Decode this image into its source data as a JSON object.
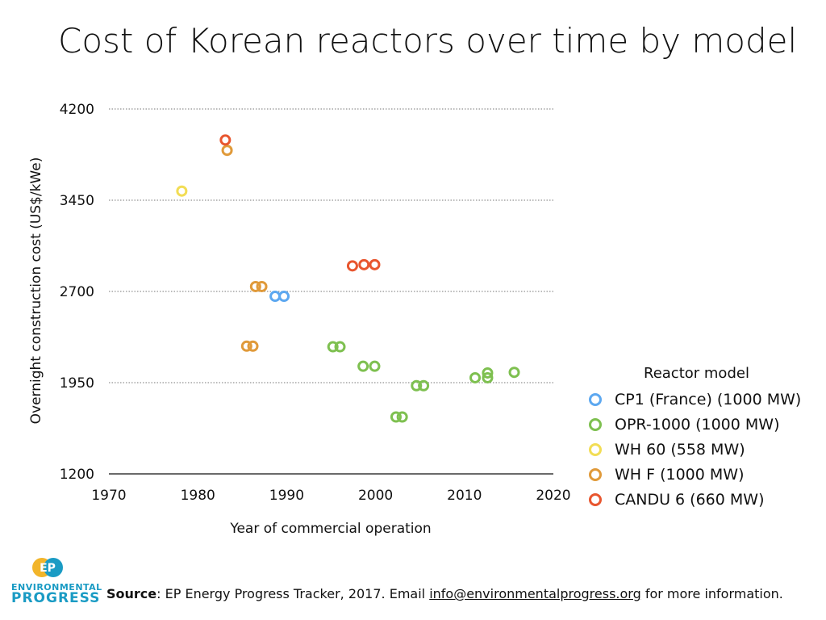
{
  "title": "Cost of Korean reactors over time by model",
  "chart_data": {
    "type": "scatter",
    "xlabel": "Year of commercial operation",
    "ylabel": "Overnight construction cost (US$/kWe)",
    "xlim": [
      1970,
      2020
    ],
    "ylim": [
      1200,
      4200
    ],
    "xticks": [
      1970,
      1980,
      1990,
      2000,
      2010,
      2020
    ],
    "yticks": [
      1200,
      1950,
      2700,
      3450,
      4200
    ],
    "grid": "horizontal dotted",
    "legend_placement": "right",
    "legend_title": "Reactor model",
    "series": [
      {
        "name": "CP1 (France) (1000 MW)",
        "color": "#5da8f0",
        "points": [
          [
            1988.7,
            2660
          ],
          [
            1989.7,
            2660
          ]
        ]
      },
      {
        "name": "OPR-1000 (1000 MW)",
        "color": "#7ec050",
        "points": [
          [
            1995.2,
            2245
          ],
          [
            1996.0,
            2245
          ],
          [
            1998.6,
            2085
          ],
          [
            1999.9,
            2085
          ],
          [
            2002.3,
            1668
          ],
          [
            2003.0,
            1668
          ],
          [
            2004.6,
            1925
          ],
          [
            2005.4,
            1925
          ],
          [
            2011.2,
            1990
          ],
          [
            2012.6,
            2030
          ],
          [
            2012.6,
            1990
          ],
          [
            2015.6,
            2035
          ]
        ]
      },
      {
        "name": "WH 60 (558 MW)",
        "color": "#f2dd55",
        "points": [
          [
            1978.2,
            3525
          ]
        ]
      },
      {
        "name": "WH F (1000 MW)",
        "color": "#e09a3a",
        "points": [
          [
            1983.3,
            3860
          ],
          [
            1985.5,
            2250
          ],
          [
            1986.2,
            2250
          ],
          [
            1986.5,
            2740
          ],
          [
            1987.2,
            2740
          ]
        ]
      },
      {
        "name": "CANDU 6 (660 MW)",
        "color": "#e8562f",
        "points": [
          [
            1983.1,
            3945
          ],
          [
            1997.4,
            2910
          ],
          [
            1998.7,
            2920
          ],
          [
            1999.9,
            2920
          ]
        ]
      }
    ]
  },
  "logo": {
    "line1": "ENVIRONMENTAL",
    "line2": "PROGRESS",
    "mark": "EP",
    "color": "#1a9bc4"
  },
  "source": {
    "label": "Source",
    "text": ": EP Energy Progress Tracker, 2017. Email ",
    "email": "info@environmentalprogress.org",
    "suffix": " for more information."
  }
}
